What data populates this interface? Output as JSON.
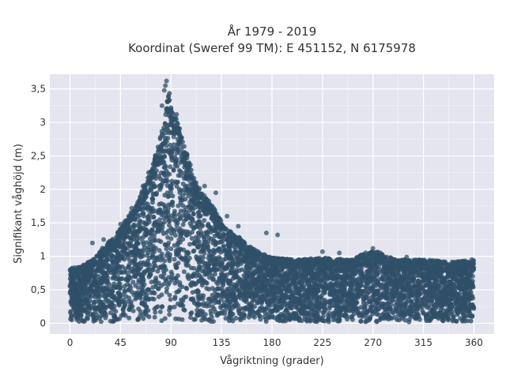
{
  "chart_data": {
    "type": "scatter",
    "title_line1": "År 1979 - 2019",
    "title_line2": "Koordinat (Sweref 99 TM): E 451152, N 6175978",
    "xlabel": "Vågriktning (grader)",
    "ylabel": "Signifikant våghöjd (m)",
    "xlim": [
      -18,
      378
    ],
    "ylim": [
      -0.16,
      3.72
    ],
    "x_ticks": [
      0,
      45,
      90,
      135,
      180,
      225,
      270,
      315,
      360
    ],
    "x_tick_labels": [
      "0",
      "45",
      "90",
      "135",
      "180",
      "225",
      "270",
      "315",
      "360"
    ],
    "y_ticks": [
      0,
      0.5,
      1,
      1.5,
      2,
      2.5,
      3,
      3.5
    ],
    "y_tick_labels": [
      "0",
      "0,5",
      "1",
      "1,5",
      "2",
      "2,5",
      "3",
      "3,5"
    ],
    "grid": true,
    "marker_color": "#2f5068",
    "plot_background": "#e5e5ef",
    "envelope": {
      "x": [
        0,
        10,
        20,
        30,
        40,
        50,
        60,
        70,
        75,
        80,
        85,
        88,
        90,
        95,
        100,
        105,
        110,
        115,
        120,
        130,
        140,
        150,
        160,
        170,
        180,
        200,
        225,
        250,
        270,
        290,
        315,
        340,
        360
      ],
      "y": [
        0.82,
        0.85,
        0.95,
        1.15,
        1.3,
        1.55,
        1.8,
        2.2,
        2.45,
        2.75,
        3.1,
        3.6,
        3.2,
        3.05,
        2.8,
        2.5,
        2.2,
        2.05,
        1.9,
        1.7,
        1.4,
        1.3,
        1.15,
        1.05,
        0.98,
        0.95,
        0.98,
        0.95,
        1.1,
        0.95,
        0.95,
        0.92,
        0.94
      ]
    },
    "outliers": [
      {
        "x": 85,
        "y": 3.55
      },
      {
        "x": 86,
        "y": 3.62
      },
      {
        "x": 84,
        "y": 3.48
      },
      {
        "x": 90,
        "y": 3.22
      },
      {
        "x": 95,
        "y": 3.12
      },
      {
        "x": 82,
        "y": 3.25
      },
      {
        "x": 120,
        "y": 2.05
      },
      {
        "x": 130,
        "y": 1.95
      },
      {
        "x": 140,
        "y": 1.6
      },
      {
        "x": 150,
        "y": 1.45
      },
      {
        "x": 175,
        "y": 1.35
      },
      {
        "x": 185,
        "y": 1.32
      },
      {
        "x": 270,
        "y": 1.12
      },
      {
        "x": 240,
        "y": 1.05
      },
      {
        "x": 225,
        "y": 1.07
      },
      {
        "x": 300,
        "y": 0.99
      },
      {
        "x": 350,
        "y": 0.93
      },
      {
        "x": 358,
        "y": 0.95
      },
      {
        "x": 20,
        "y": 1.2
      },
      {
        "x": 30,
        "y": 1.25
      },
      {
        "x": 45,
        "y": 1.48
      },
      {
        "x": 55,
        "y": 1.72
      },
      {
        "x": 65,
        "y": 2.05
      },
      {
        "x": 70,
        "y": 2.25
      }
    ]
  }
}
